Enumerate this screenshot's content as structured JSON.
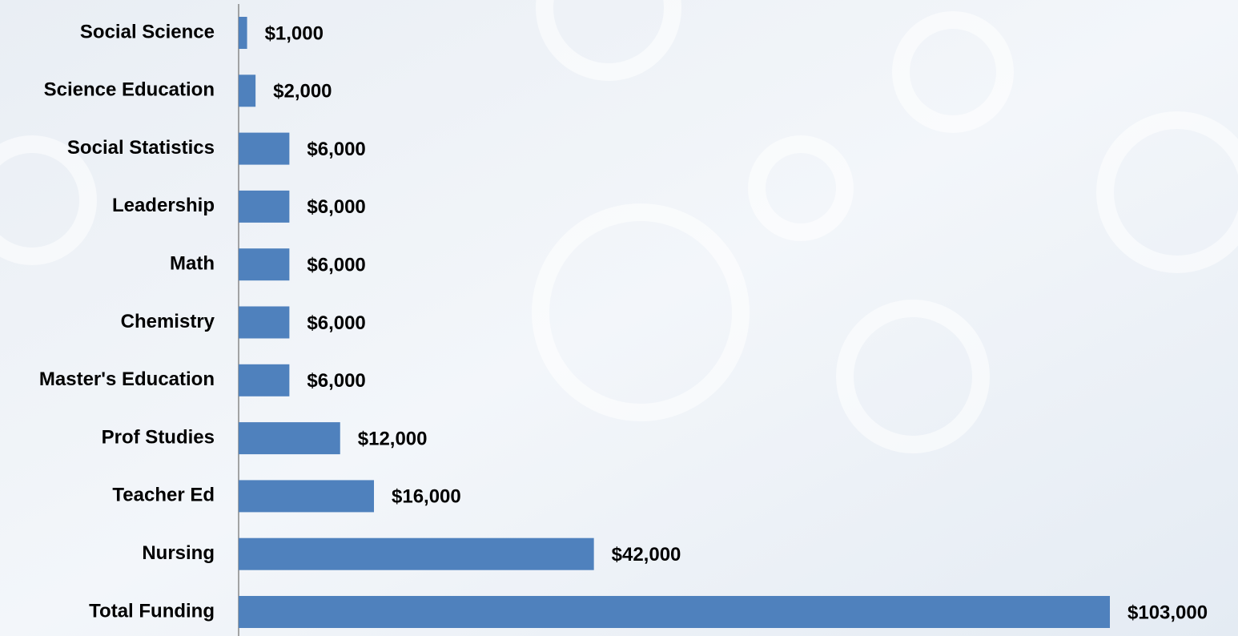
{
  "chart_data": {
    "type": "bar",
    "orientation": "horizontal",
    "categories": [
      "Social Science",
      "Science Education",
      "Social Statistics",
      "Leadership",
      "Math",
      "Chemistry",
      "Master's Education",
      "Prof Studies",
      "Teacher Ed",
      "Nursing",
      "Total Funding"
    ],
    "values": [
      1000,
      2000,
      6000,
      6000,
      6000,
      6000,
      6000,
      12000,
      16000,
      42000,
      103000
    ],
    "value_labels": [
      "$1,000",
      "$2,000",
      "$6,000",
      "$6,000",
      "$6,000",
      "$6,000",
      "$6,000",
      "$12,000",
      "$16,000",
      "$42,000",
      "$103,000"
    ],
    "color": "#4f81bd"
  }
}
